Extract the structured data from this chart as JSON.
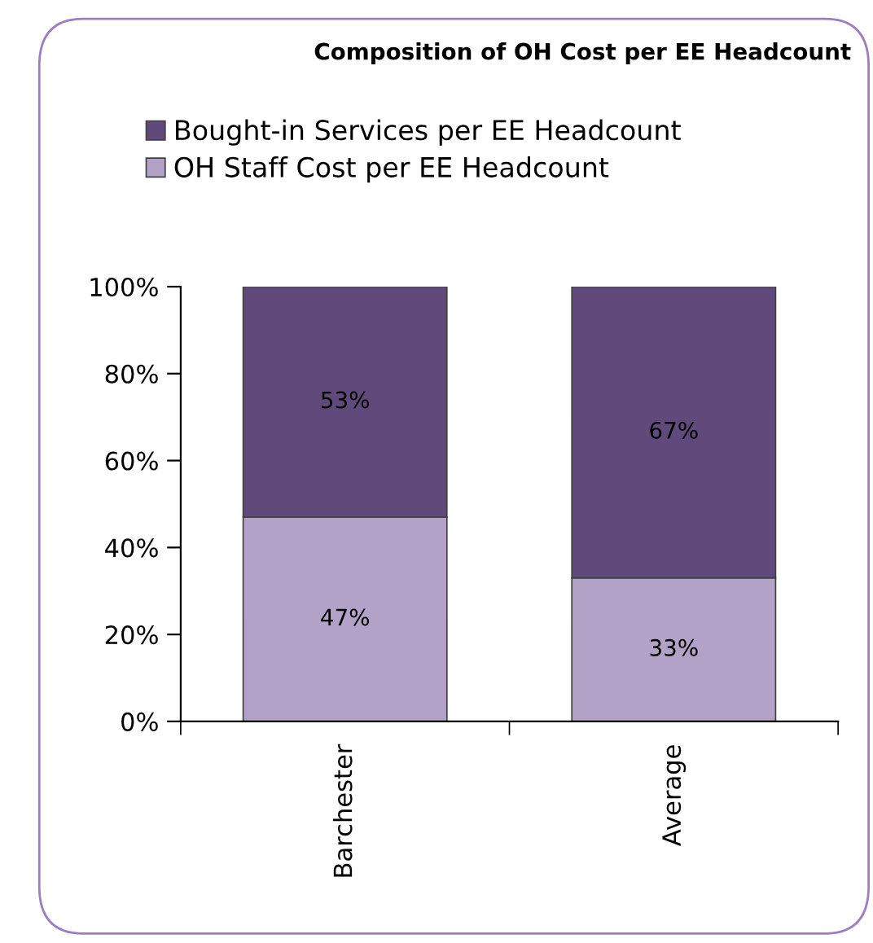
{
  "chart_data": {
    "type": "bar",
    "stacked": true,
    "title": "Composition of OH Cost per EE Headcount",
    "categories": [
      "Barchester",
      "Average"
    ],
    "series": [
      {
        "name": "OH Staff Cost per EE Headcount",
        "color": "#b3a2c7",
        "values": [
          47,
          33
        ],
        "value_labels": [
          "47%",
          "33%"
        ]
      },
      {
        "name": "Bought-in Services per EE Headcount",
        "color": "#604a7b",
        "values": [
          53,
          67
        ],
        "value_labels": [
          "53%",
          "67%"
        ]
      }
    ],
    "ylim": [
      0,
      100
    ],
    "yticks": [
      {
        "value": 0,
        "label": "0%"
      },
      {
        "value": 20,
        "label": "20%"
      },
      {
        "value": 40,
        "label": "40%"
      },
      {
        "value": 60,
        "label": "60%"
      },
      {
        "value": 80,
        "label": "80%"
      },
      {
        "value": 100,
        "label": "100%"
      }
    ],
    "grid": false,
    "legend": "top"
  }
}
